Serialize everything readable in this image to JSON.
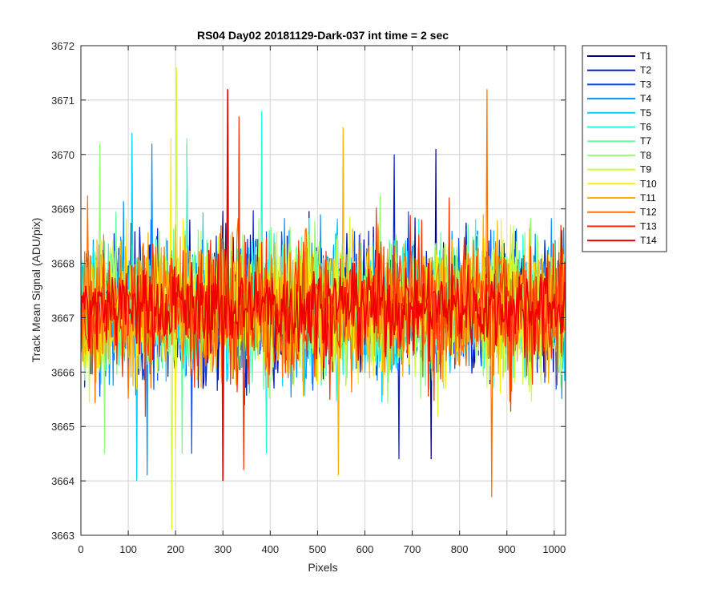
{
  "chart_data": {
    "type": "line",
    "title": "RS04 Day02 20181129-Dark-037 int time = 2 sec",
    "xlabel": "Pixels",
    "ylabel": "Track Mean Signal (ADU/pix)",
    "xlim": [
      0,
      1024
    ],
    "ylim": [
      3663,
      3672
    ],
    "xticks": [
      0,
      100,
      200,
      300,
      400,
      500,
      600,
      700,
      800,
      900,
      1000
    ],
    "yticks": [
      3663,
      3664,
      3665,
      3666,
      3667,
      3668,
      3669,
      3670,
      3671,
      3672
    ],
    "grid": true,
    "legend_position": "outside-top-right",
    "series": [
      {
        "name": "T1",
        "color": "#00008F",
        "mean": 3667.2,
        "std": 0.85,
        "min": 3664.4,
        "max": 3670.1
      },
      {
        "name": "T2",
        "color": "#0020CF",
        "mean": 3667.2,
        "std": 0.85,
        "min": 3664.4,
        "max": 3670.0
      },
      {
        "name": "T3",
        "color": "#0050FF",
        "mean": 3667.2,
        "std": 0.85,
        "min": 3664.5,
        "max": 3670.2
      },
      {
        "name": "T4",
        "color": "#0090FF",
        "mean": 3667.2,
        "std": 0.85,
        "min": 3664.1,
        "max": 3670.2
      },
      {
        "name": "T5",
        "color": "#00D0FF",
        "mean": 3667.2,
        "std": 0.85,
        "min": 3664.0,
        "max": 3670.4
      },
      {
        "name": "T6",
        "color": "#20FFDF",
        "mean": 3667.2,
        "std": 0.85,
        "min": 3664.5,
        "max": 3670.8
      },
      {
        "name": "T7",
        "color": "#60FFA0",
        "mean": 3667.2,
        "std": 0.85,
        "min": 3664.5,
        "max": 3670.3
      },
      {
        "name": "T8",
        "color": "#90FF70",
        "mean": 3667.2,
        "std": 0.85,
        "min": 3664.5,
        "max": 3670.2
      },
      {
        "name": "T9",
        "color": "#CFFF30",
        "mean": 3667.2,
        "std": 0.85,
        "min": 3663.1,
        "max": 3671.6
      },
      {
        "name": "T10",
        "color": "#FFEF00",
        "mean": 3667.2,
        "std": 0.85,
        "min": 3664.6,
        "max": 3670.3
      },
      {
        "name": "T11",
        "color": "#FFB000",
        "mean": 3667.2,
        "std": 0.85,
        "min": 3664.1,
        "max": 3670.5
      },
      {
        "name": "T12",
        "color": "#FF7000",
        "mean": 3667.2,
        "std": 0.85,
        "min": 3663.7,
        "max": 3671.2
      },
      {
        "name": "T13",
        "color": "#FF3000",
        "mean": 3667.2,
        "std": 0.85,
        "min": 3664.2,
        "max": 3670.7
      },
      {
        "name": "T14",
        "color": "#EF0000",
        "mean": 3667.2,
        "std": 0.55,
        "min": 3664.0,
        "max": 3671.2
      }
    ]
  }
}
